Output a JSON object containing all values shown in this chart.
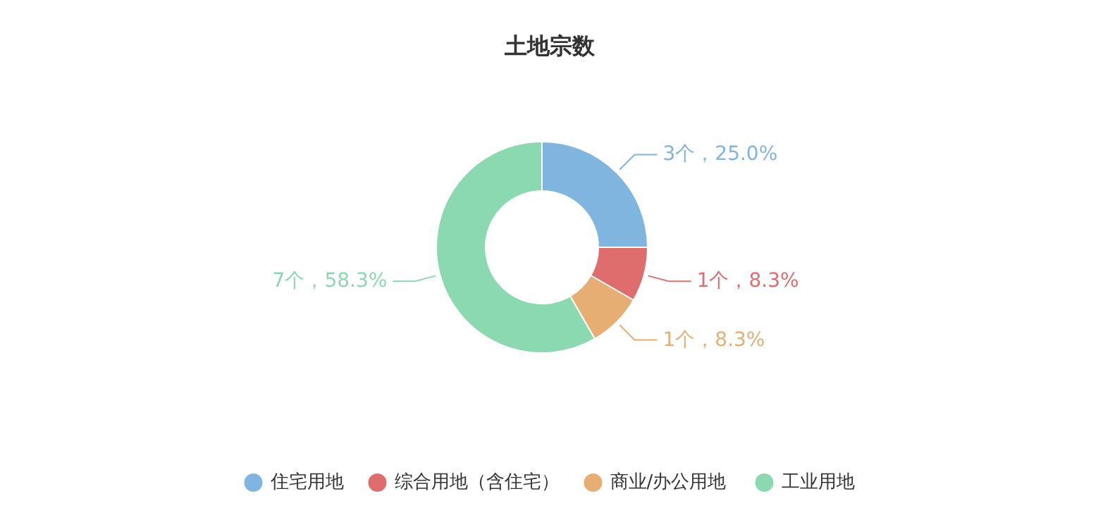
{
  "chart_data": {
    "type": "donut",
    "title": "土地宗数",
    "categories": [
      "住宅用地",
      "综合用地（含住宅）",
      "商业/办公用地",
      "工业用地"
    ],
    "values": [
      3,
      1,
      1,
      7
    ],
    "colors": [
      "#80b5e0",
      "#e06d6d",
      "#e6ae73",
      "#8ad9b1"
    ],
    "value_labels": [
      "3个，25.0%",
      "1个，8.3%",
      "1个，8.3%",
      "7个，58.3%"
    ],
    "legend": "bottom"
  }
}
